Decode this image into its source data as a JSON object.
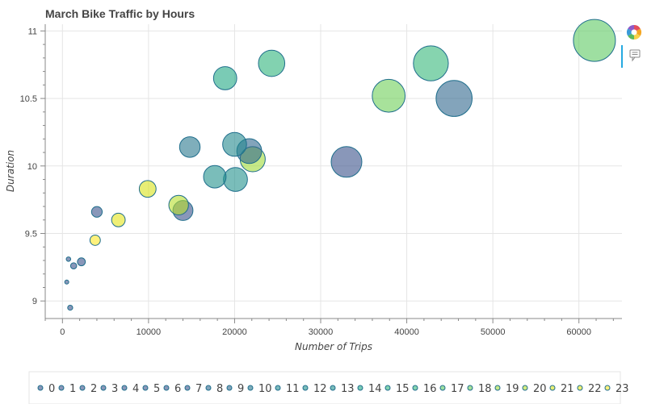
{
  "chart_data": {
    "type": "scatter",
    "title": "March Bike Traffic by Hours",
    "xlabel": "Number of Trips",
    "ylabel": "Duration",
    "xlim": [
      -2000,
      65000
    ],
    "ylim": [
      8.87,
      11.05
    ],
    "x_ticks": [
      0,
      10000,
      20000,
      30000,
      40000,
      50000,
      60000
    ],
    "y_ticks": [
      9,
      9.5,
      10,
      10.5,
      11
    ],
    "y_tick_labels": [
      "9",
      "9.5",
      "10",
      "10.5",
      "11"
    ],
    "grid": true,
    "legend_placement": "bottom",
    "size_encodes": "Number of Trips",
    "color_encodes": "hour",
    "points": [
      {
        "hour": "0",
        "x": 4000,
        "y": 9.66
      },
      {
        "hour": "1",
        "x": 2200,
        "y": 9.29
      },
      {
        "hour": "2",
        "x": 1300,
        "y": 9.26
      },
      {
        "hour": "3",
        "x": 700,
        "y": 9.31
      },
      {
        "hour": "4",
        "x": 500,
        "y": 9.14
      },
      {
        "hour": "5",
        "x": 900,
        "y": 8.95
      },
      {
        "hour": "6",
        "x": 14000,
        "y": 9.67
      },
      {
        "hour": "7",
        "x": 33000,
        "y": 10.03
      },
      {
        "hour": "8",
        "x": 45500,
        "y": 10.5
      },
      {
        "hour": "9",
        "x": 21700,
        "y": 10.11
      },
      {
        "hour": "10",
        "x": 14800,
        "y": 10.14
      },
      {
        "hour": "11",
        "x": 20000,
        "y": 10.16
      },
      {
        "hour": "12",
        "x": 17700,
        "y": 9.92
      },
      {
        "hour": "13",
        "x": 20100,
        "y": 9.9
      },
      {
        "hour": "14",
        "x": 18900,
        "y": 10.65
      },
      {
        "hour": "15",
        "x": 24300,
        "y": 10.76
      },
      {
        "hour": "16",
        "x": 42800,
        "y": 10.76
      },
      {
        "hour": "17",
        "x": 61800,
        "y": 10.93
      },
      {
        "hour": "18",
        "x": 37900,
        "y": 10.52
      },
      {
        "hour": "19",
        "x": 22100,
        "y": 10.05
      },
      {
        "hour": "20",
        "x": 13500,
        "y": 9.71
      },
      {
        "hour": "21",
        "x": 9900,
        "y": 9.83
      },
      {
        "hour": "22",
        "x": 6500,
        "y": 9.6
      },
      {
        "hour": "23",
        "x": 3800,
        "y": 9.45
      }
    ],
    "legend": [
      "0",
      "1",
      "2",
      "3",
      "4",
      "5",
      "6",
      "7",
      "8",
      "9",
      "10",
      "11",
      "12",
      "13",
      "14",
      "15",
      "16",
      "17",
      "18",
      "19",
      "20",
      "21",
      "22",
      "23"
    ],
    "colors": {
      "0": "#3b528b",
      "1": "#3b528b",
      "2": "#3b528b",
      "3": "#3b528b",
      "4": "#3b528b",
      "5": "#3b528b",
      "6": "#3b528b",
      "7": "#3b528b",
      "8": "#31688e",
      "9": "#31688e",
      "10": "#2a788e",
      "11": "#23888e",
      "12": "#21918c",
      "13": "#21918c",
      "14": "#22a884",
      "15": "#2fb47c",
      "16": "#35b779",
      "17": "#5ec962",
      "18": "#6ece58",
      "19": "#a0da39",
      "20": "#b5de2b",
      "21": "#d8e219",
      "22": "#e5e419",
      "23": "#fde725"
    },
    "stroke_color": "#1f6e8c"
  },
  "toolbar": {
    "logo_icon": "bokeh-logo-icon",
    "hover_icon": "hover-tool-icon"
  }
}
